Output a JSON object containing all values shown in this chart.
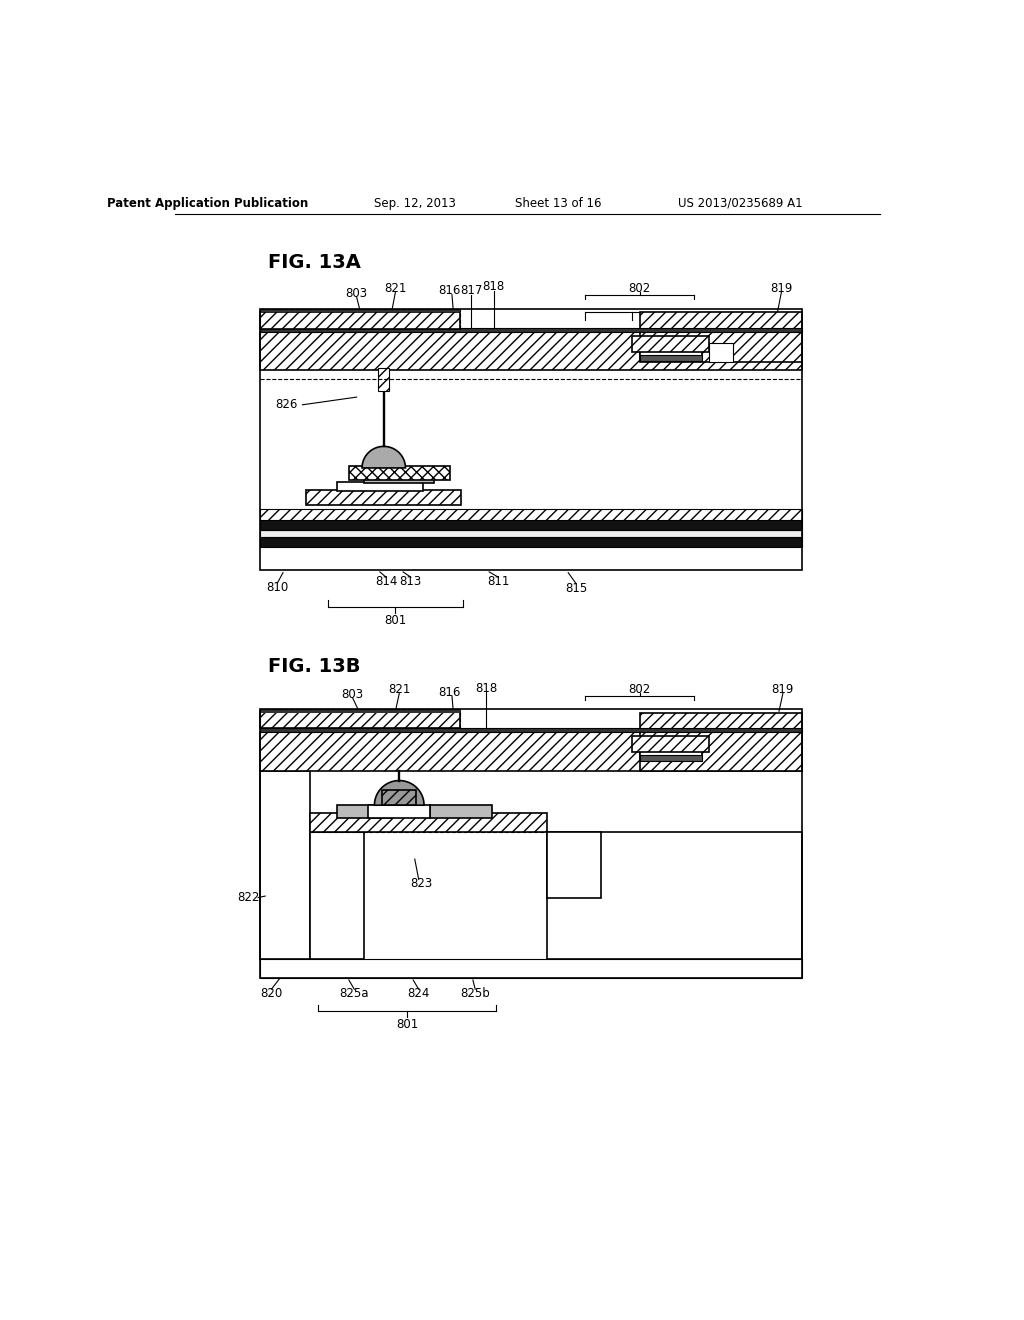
{
  "bg_color": "#ffffff",
  "header_text": "Patent Application Publication",
  "header_date": "Sep. 12, 2013",
  "header_sheet": "Sheet 13 of 16",
  "header_patent": "US 2013/0235689 A1",
  "fig13a_label": "FIG. 13A",
  "fig13b_label": "FIG. 13B",
  "line_color": "#000000"
}
